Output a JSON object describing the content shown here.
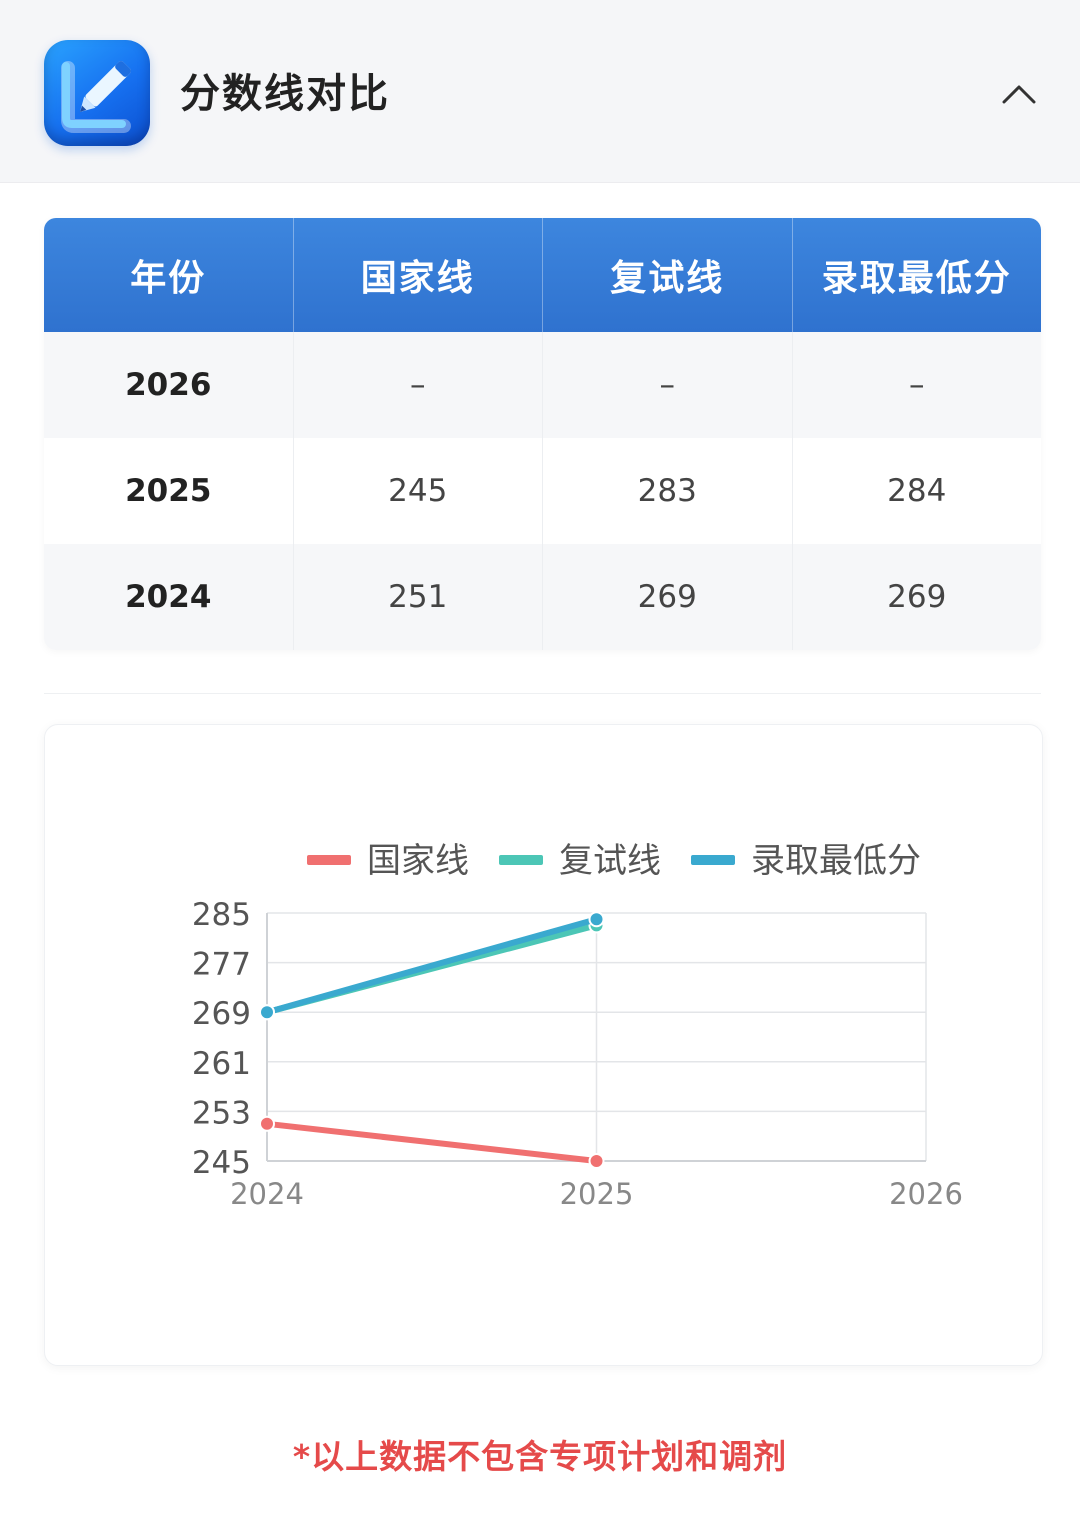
{
  "header": {
    "title": "分数线对比",
    "logo_icon": "pencil-icon",
    "collapse_icon": "chevron-up-icon"
  },
  "table": {
    "columns": [
      "年份",
      "国家线",
      "复试线",
      "录取最低分"
    ],
    "rows": [
      [
        "2026",
        "–",
        "–",
        "–"
      ],
      [
        "2025",
        "245",
        "283",
        "284"
      ],
      [
        "2024",
        "251",
        "269",
        "269"
      ]
    ]
  },
  "colors": {
    "header_blue": "#3a80da",
    "national_line": "#f07070",
    "retest_line": "#4cc6b6",
    "admit_line": "#3aa9cf",
    "footnote_red": "#e54a4a"
  },
  "chart_data": {
    "type": "line",
    "x": [
      "2024",
      "2025",
      "2026"
    ],
    "series": [
      {
        "name": "国家线",
        "values": [
          251,
          245,
          null
        ],
        "color": "#f07070"
      },
      {
        "name": "复试线",
        "values": [
          269,
          283,
          null
        ],
        "color": "#4cc6b6"
      },
      {
        "name": "录取最低分",
        "values": [
          269,
          284,
          null
        ],
        "color": "#3aa9cf"
      }
    ],
    "yticks": [
      "285",
      "277",
      "269",
      "261",
      "253",
      "245"
    ],
    "ylim": [
      245,
      285
    ],
    "grid": true,
    "legend": "top"
  },
  "footnote": "*以上数据不包含专项计划和调剂"
}
